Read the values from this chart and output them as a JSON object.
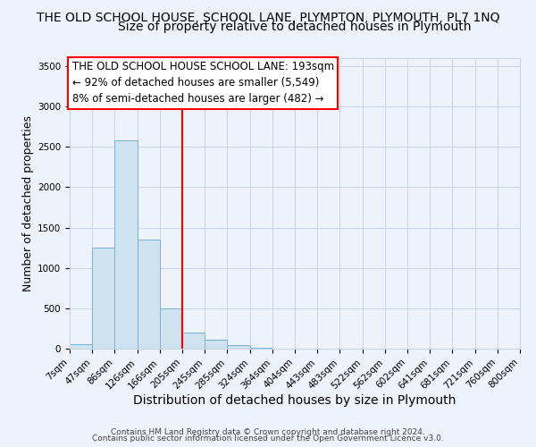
{
  "title": "THE OLD SCHOOL HOUSE, SCHOOL LANE, PLYMPTON, PLYMOUTH, PL7 1NQ",
  "subtitle": "Size of property relative to detached houses in Plymouth",
  "xlabel": "Distribution of detached houses by size in Plymouth",
  "ylabel": "Number of detached properties",
  "bin_labels": [
    "7sqm",
    "47sqm",
    "86sqm",
    "126sqm",
    "166sqm",
    "205sqm",
    "245sqm",
    "285sqm",
    "324sqm",
    "364sqm",
    "404sqm",
    "443sqm",
    "483sqm",
    "522sqm",
    "562sqm",
    "602sqm",
    "641sqm",
    "681sqm",
    "721sqm",
    "760sqm",
    "800sqm"
  ],
  "bar_values": [
    50,
    1250,
    2580,
    1350,
    500,
    200,
    110,
    45,
    15,
    5,
    2,
    1,
    0,
    0,
    0,
    0,
    0,
    0,
    0,
    0
  ],
  "bar_color": "#cfe2f0",
  "bar_edge_color": "#7ab0d4",
  "vline_color": "red",
  "vline_pos": 5,
  "ylim": [
    0,
    3600
  ],
  "yticks": [
    0,
    500,
    1000,
    1500,
    2000,
    2500,
    3000,
    3500
  ],
  "annotation_title": "THE OLD SCHOOL HOUSE SCHOOL LANE: 193sqm",
  "annotation_line1": "← 92% of detached houses are smaller (5,549)",
  "annotation_line2": "8% of semi-detached houses are larger (482) →",
  "footer1": "Contains HM Land Registry data © Crown copyright and database right 2024.",
  "footer2": "Contains public sector information licensed under the Open Government Licence v3.0.",
  "bg_color": "#eef2fa",
  "grid_color": "#c8d4e8",
  "title_fontsize": 10,
  "subtitle_fontsize": 10,
  "xlabel_fontsize": 10,
  "ylabel_fontsize": 9,
  "annotation_fontsize": 8.5,
  "footer_fontsize": 6.5,
  "tick_fontsize": 7.5
}
